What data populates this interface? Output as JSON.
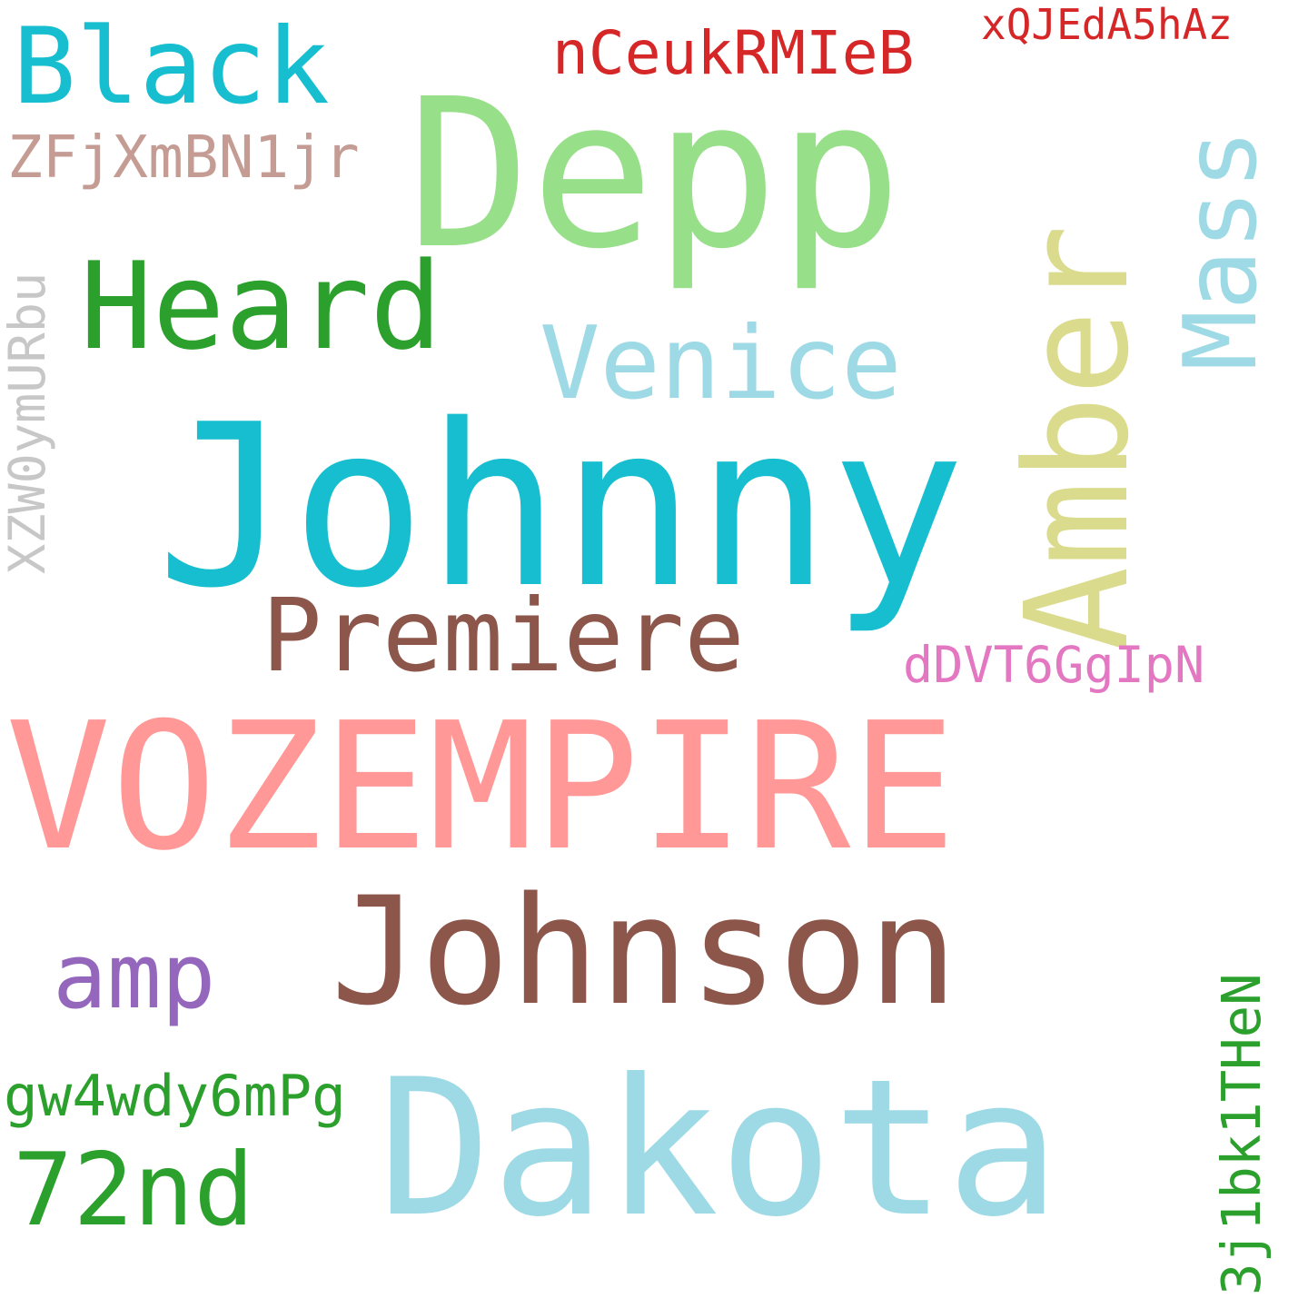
{
  "colors": {
    "background": "#ffffff",
    "cyan": "#17becf",
    "light_cyan": "#9edae5",
    "light_green": "#98df8a",
    "green": "#2ca02c",
    "brown": "#8c564b",
    "salmon": "#ff9896",
    "purple": "#9467bd",
    "olive_light": "#dbdb8d",
    "red": "#d62728",
    "rose_brown": "#c49c94",
    "gray": "#c7c7c7",
    "pink": "#e377c2"
  },
  "words": [
    {
      "id": "vozempire",
      "text": "VOZEMPIRE",
      "color": "salmon",
      "orientation": "horizontal"
    },
    {
      "id": "johnny",
      "text": "Johnny",
      "color": "cyan",
      "orientation": "horizontal"
    },
    {
      "id": "dakota",
      "text": "Dakota",
      "color": "light_cyan",
      "orientation": "horizontal"
    },
    {
      "id": "johnson",
      "text": "Johnson",
      "color": "brown",
      "orientation": "horizontal"
    },
    {
      "id": "depp",
      "text": "Depp",
      "color": "light_green",
      "orientation": "horizontal"
    },
    {
      "id": "amber",
      "text": "Amber",
      "color": "olive_light",
      "orientation": "vertical"
    },
    {
      "id": "heard",
      "text": "Heard",
      "color": "green",
      "orientation": "horizontal"
    },
    {
      "id": "black",
      "text": "Black",
      "color": "cyan",
      "orientation": "horizontal"
    },
    {
      "id": "premiere",
      "text": "Premiere",
      "color": "brown",
      "orientation": "horizontal"
    },
    {
      "id": "venice",
      "text": "Venice",
      "color": "light_cyan",
      "orientation": "horizontal"
    },
    {
      "id": "mass",
      "text": "Mass",
      "color": "light_cyan",
      "orientation": "vertical"
    },
    {
      "id": "amp",
      "text": "amp",
      "color": "purple",
      "orientation": "horizontal"
    },
    {
      "id": "72nd",
      "text": "72nd",
      "color": "green",
      "orientation": "horizontal"
    },
    {
      "id": "nceukrmieb",
      "text": "nCeukRMIeB",
      "color": "red",
      "orientation": "horizontal"
    },
    {
      "id": "xqjeda5haz",
      "text": "xQJEdA5hAz",
      "color": "red",
      "orientation": "horizontal"
    },
    {
      "id": "zfjxmbn1jr",
      "text": "ZFjXmBN1jr",
      "color": "rose_brown",
      "orientation": "horizontal"
    },
    {
      "id": "xzw0ymurbu",
      "text": "XZW0ymURbu",
      "color": "gray",
      "orientation": "vertical"
    },
    {
      "id": "ddvt6ggipn",
      "text": "dDVT6GgIpN",
      "color": "pink",
      "orientation": "horizontal"
    },
    {
      "id": "gw4wdy6mpg",
      "text": "gw4wdy6mPg",
      "color": "green",
      "orientation": "horizontal"
    },
    {
      "id": "3j1bk1then",
      "text": "3j1bk1THeN",
      "color": "green",
      "orientation": "vertical"
    }
  ]
}
